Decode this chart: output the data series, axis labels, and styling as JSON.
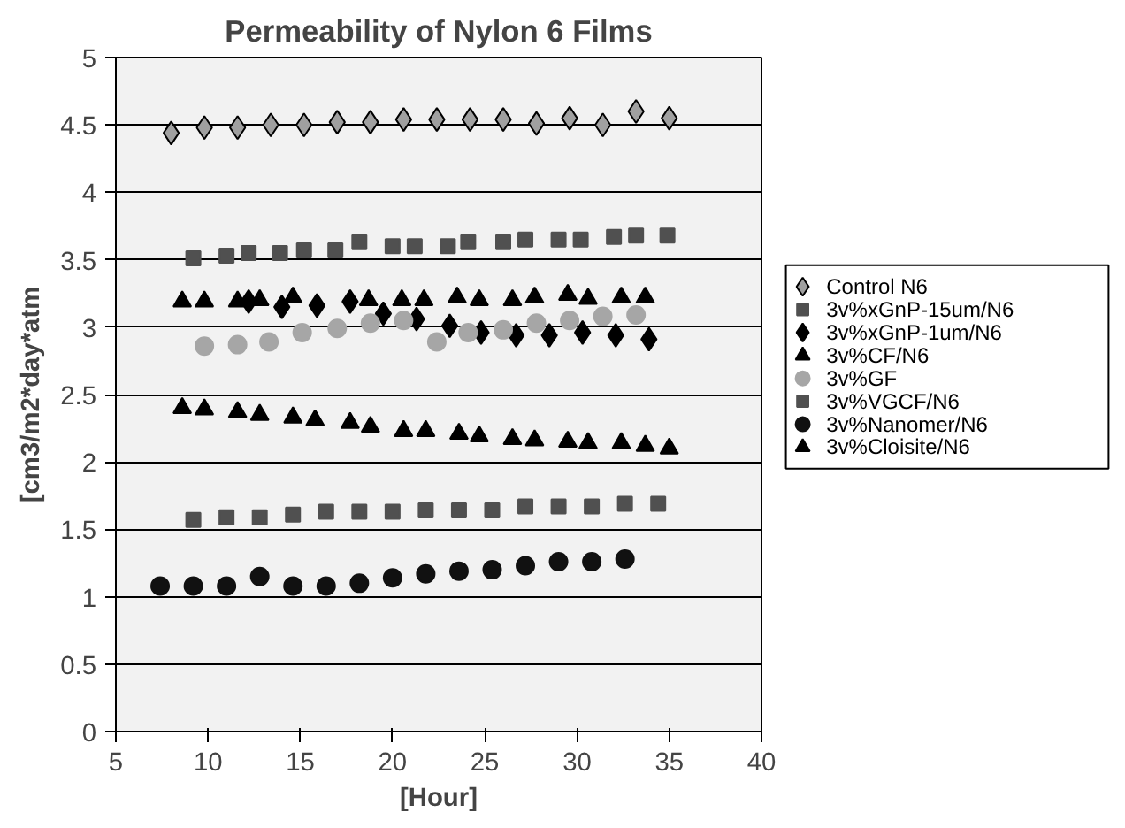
{
  "chart_data": {
    "type": "scatter",
    "title": "Permeability of Nylon 6 Films",
    "xlabel": "[Hour]",
    "ylabel": "[cm3/m2*day*atm",
    "xlim": [
      5,
      40
    ],
    "ylim": [
      0,
      5
    ],
    "xticks": [
      5,
      10,
      15,
      20,
      25,
      30,
      35,
      40
    ],
    "yticks": [
      0,
      0.5,
      1,
      1.5,
      2,
      2.5,
      3,
      3.5,
      4,
      4.5,
      5
    ],
    "grid": "y",
    "legend": "right",
    "series": [
      {
        "name": "Control N6",
        "color": "#a0a0a0",
        "marker": "diamond",
        "x": [
          8,
          9.8,
          11.6,
          13.4,
          15.2,
          17,
          18.8,
          20.6,
          22.4,
          24.2,
          26,
          27.8,
          29.6,
          31.4,
          33.2,
          35
        ],
        "values": [
          4.44,
          4.48,
          4.48,
          4.5,
          4.5,
          4.52,
          4.52,
          4.54,
          4.54,
          4.54,
          4.54,
          4.51,
          4.55,
          4.5,
          4.6,
          4.55
        ]
      },
      {
        "name": "3v%xGnP-15um/N6",
        "color": "#505050",
        "marker": "square",
        "x": [
          9.2,
          11,
          12.2,
          13.9,
          15.2,
          16.9,
          18.2,
          20,
          21.2,
          23,
          24.1,
          26,
          27.2,
          29,
          30.2,
          32,
          33.2,
          34.9
        ],
        "values": [
          3.51,
          3.53,
          3.55,
          3.55,
          3.57,
          3.57,
          3.63,
          3.6,
          3.6,
          3.6,
          3.63,
          3.63,
          3.65,
          3.65,
          3.65,
          3.67,
          3.68,
          3.68
        ]
      },
      {
        "name": "3v%xGnP-1um/N6",
        "color": "#000000",
        "marker": "diamond",
        "x": [
          12.2,
          14,
          15.9,
          17.7,
          19.5,
          21.3,
          23.1,
          24.8,
          26.7,
          28.5,
          30.3,
          32.1,
          33.9
        ],
        "values": [
          3.19,
          3.15,
          3.16,
          3.19,
          3.1,
          3.06,
          3.01,
          2.96,
          2.94,
          2.94,
          2.96,
          2.94,
          2.91
        ]
      },
      {
        "name": "3v%CF/N6",
        "color": "#000000",
        "marker": "triangle",
        "x": [
          8.6,
          9.8,
          11.6,
          12.8,
          14.6,
          18.7,
          20.5,
          21.7,
          23.5,
          24.7,
          26.5,
          27.7,
          29.5,
          30.6,
          32.4,
          33.7
        ],
        "values": [
          3.19,
          3.19,
          3.19,
          3.2,
          3.22,
          3.2,
          3.2,
          3.2,
          3.22,
          3.2,
          3.2,
          3.22,
          3.24,
          3.21,
          3.22,
          3.22
        ]
      },
      {
        "name": "3v%GF",
        "color": "#a6a6a6",
        "marker": "circle",
        "x": [
          9.8,
          11.6,
          13.3,
          15.1,
          17,
          18.8,
          20.6,
          22.4,
          24.1,
          26,
          27.8,
          29.6,
          31.4,
          33.2
        ],
        "values": [
          2.86,
          2.87,
          2.89,
          2.96,
          2.99,
          3.03,
          3.05,
          2.89,
          2.96,
          2.98,
          3.03,
          3.05,
          3.08,
          3.09
        ]
      },
      {
        "name": "3v%VGCF/N6",
        "color": "#505050",
        "marker": "square",
        "x": [
          9.2,
          11,
          12.8,
          14.6,
          16.4,
          18.2,
          20,
          21.8,
          23.6,
          25.4,
          27.2,
          29,
          30.8,
          32.6,
          34.4
        ],
        "values": [
          1.57,
          1.59,
          1.59,
          1.61,
          1.63,
          1.63,
          1.63,
          1.64,
          1.64,
          1.64,
          1.67,
          1.67,
          1.67,
          1.69,
          1.69
        ]
      },
      {
        "name": "3v%Nanomer/N6",
        "color": "#111111",
        "marker": "circle",
        "x": [
          7.4,
          9.2,
          11,
          12.8,
          14.6,
          16.4,
          18.2,
          20,
          21.8,
          23.6,
          25.4,
          27.2,
          29,
          30.8,
          32.6
        ],
        "values": [
          1.08,
          1.08,
          1.08,
          1.15,
          1.08,
          1.08,
          1.1,
          1.14,
          1.17,
          1.19,
          1.2,
          1.23,
          1.26,
          1.26,
          1.28
        ]
      },
      {
        "name": "3v%Cloisite/N6",
        "color": "#000000",
        "marker": "triangle",
        "x": [
          8.6,
          9.8,
          11.6,
          12.8,
          14.6,
          15.8,
          17.7,
          18.8,
          20.6,
          21.8,
          23.6,
          24.7,
          26.5,
          27.7,
          29.5,
          30.6,
          32.4,
          33.7,
          35
        ],
        "values": [
          2.4,
          2.39,
          2.37,
          2.35,
          2.33,
          2.31,
          2.29,
          2.26,
          2.23,
          2.23,
          2.21,
          2.19,
          2.17,
          2.16,
          2.15,
          2.14,
          2.14,
          2.12,
          2.1
        ]
      }
    ]
  }
}
